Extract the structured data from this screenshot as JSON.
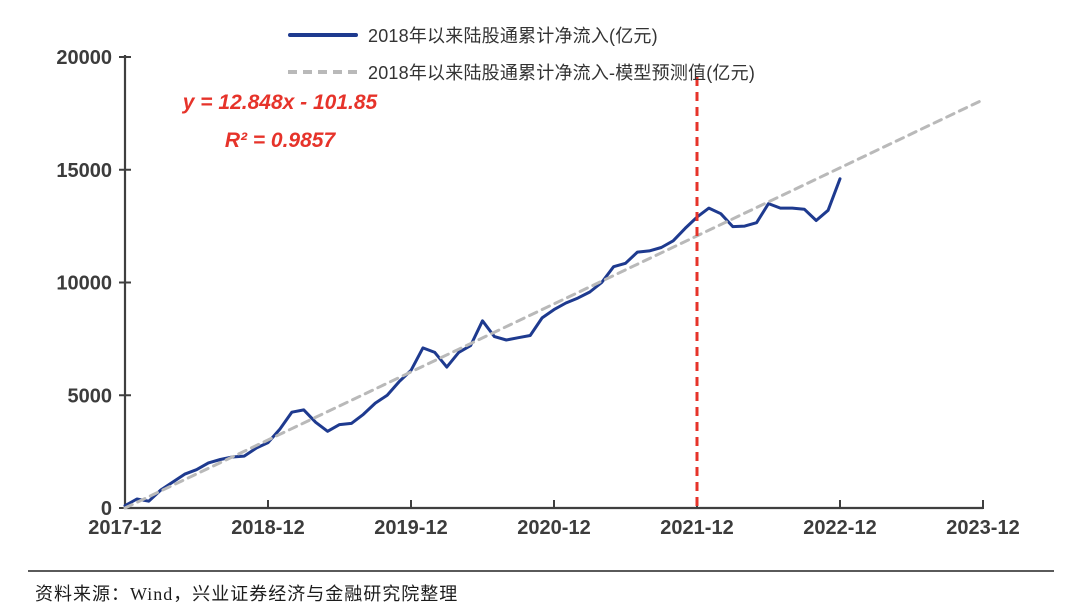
{
  "legend": {
    "items": [
      {
        "label": "2018年以来陆股通累计净流入(亿元)",
        "style": "solid",
        "color": "#1e3a8f"
      },
      {
        "label": "2018年以来陆股通累计净流入-模型预测值(亿元)",
        "style": "dashed",
        "color": "#b9b9b9"
      }
    ]
  },
  "annotation": {
    "equation": "y = 12.848x - 101.85",
    "r_squared": "R² = 0.9857",
    "color": "#e6332a"
  },
  "footer": {
    "source_text": "资料来源：Wind，兴业证券经济与金融研究院整理"
  },
  "chart_data": {
    "type": "line",
    "title": "",
    "xlabel": "",
    "ylabel": "",
    "x_unit": "months since 2017-12",
    "ylim": [
      0,
      20000
    ],
    "y_ticks": [
      0,
      5000,
      10000,
      15000,
      20000
    ],
    "x_tick_months": [
      0,
      12,
      24,
      36,
      48,
      60,
      72
    ],
    "x_tick_labels": [
      "2017-12",
      "2018-12",
      "2019-12",
      "2020-12",
      "2021-12",
      "2022-12",
      "2023-12"
    ],
    "grid": false,
    "legend_position": "top-center",
    "series": [
      {
        "name": "2018年以来陆股通累计净流入(亿元)",
        "color": "#1e3a8f",
        "style": "solid",
        "x_start_month": 0,
        "x_step_months": 1,
        "values": [
          100,
          400,
          300,
          800,
          1150,
          1500,
          1700,
          2000,
          2150,
          2260,
          2300,
          2650,
          2900,
          3500,
          4250,
          4350,
          3800,
          3400,
          3700,
          3750,
          4150,
          4650,
          5000,
          5600,
          6100,
          7100,
          6900,
          6250,
          6900,
          7200,
          8300,
          7600,
          7450,
          7550,
          7650,
          8430,
          8800,
          9090,
          9310,
          9580,
          10000,
          10700,
          10850,
          11350,
          11400,
          11550,
          11850,
          12400,
          12900,
          13300,
          13050,
          12480,
          12500,
          12650,
          13500,
          13300,
          13300,
          13250,
          12750,
          13200,
          14600
        ]
      },
      {
        "name": "2018年以来陆股通累计净流入-模型预测值(亿元)",
        "color": "#b9b9b9",
        "style": "dashed",
        "x": [
          0,
          72
        ],
        "values": [
          0,
          18100
        ]
      }
    ],
    "vline": {
      "x_month": 48,
      "at_label": "2021-12",
      "color": "#e6332a",
      "style": "dashed"
    },
    "trend_equation": "y = 12.848x - 101.85",
    "r2": 0.9857
  }
}
